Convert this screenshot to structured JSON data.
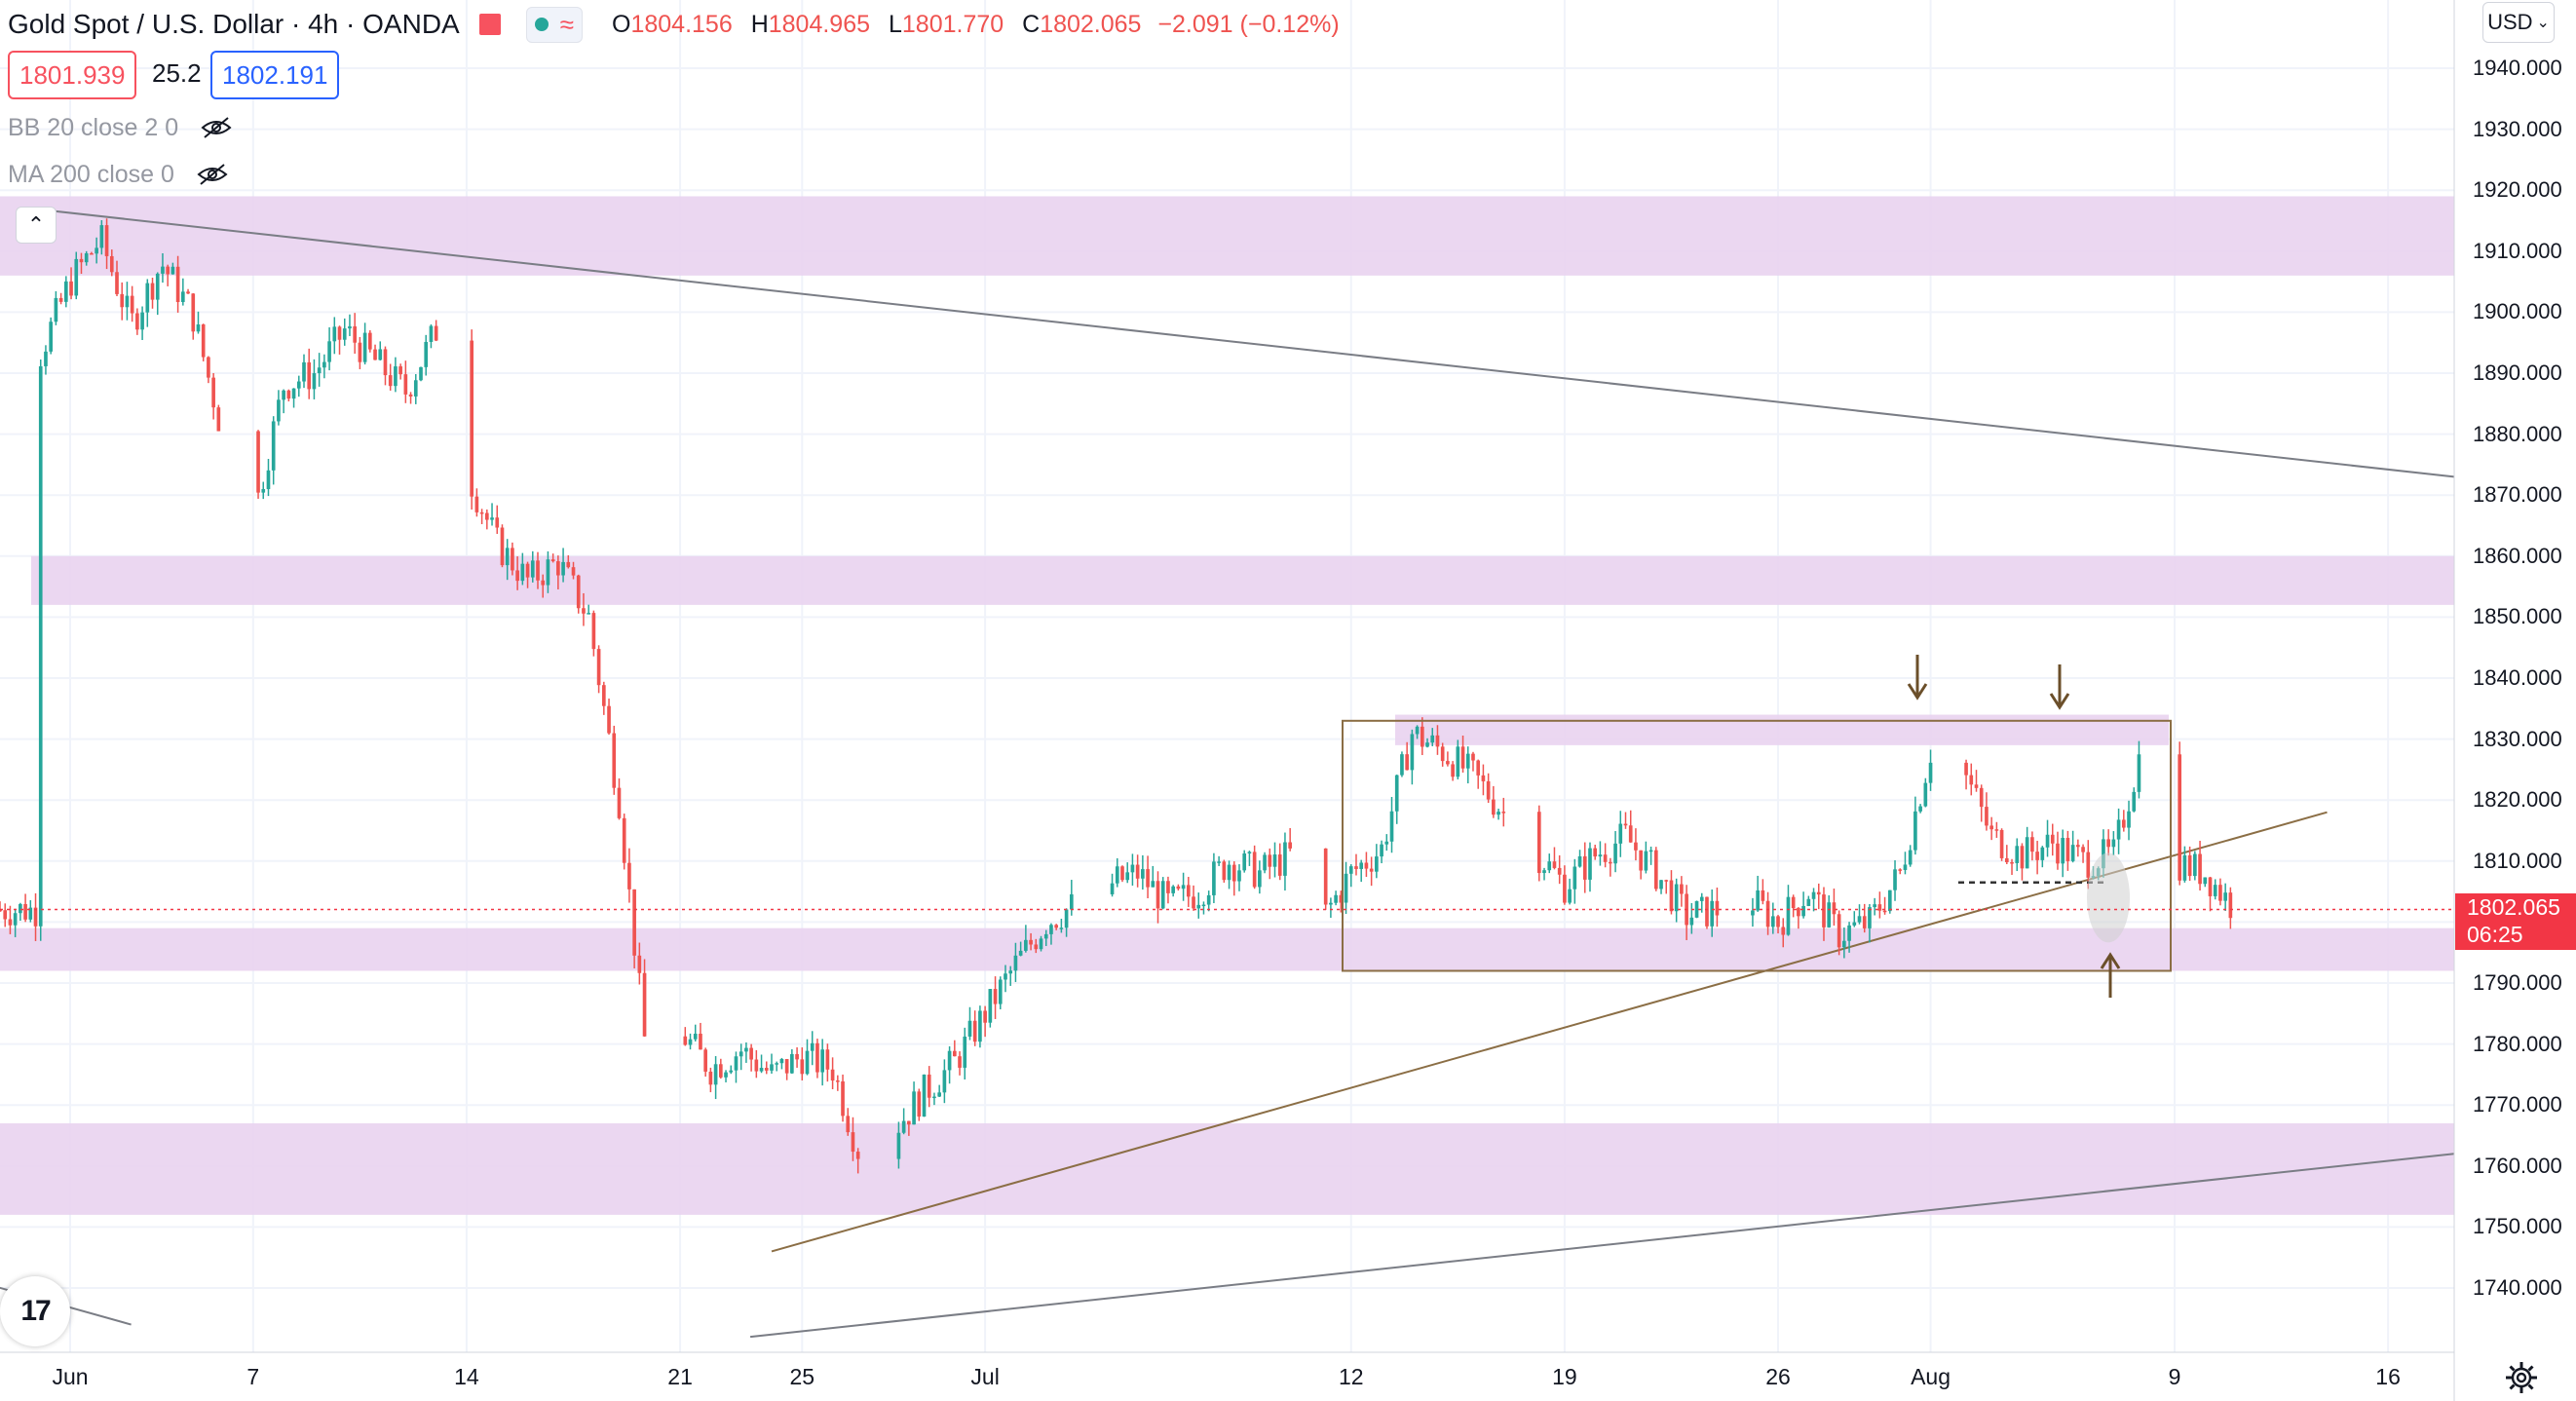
{
  "header": {
    "symbol_title": "Gold Spot / U.S. Dollar · 4h · OANDA",
    "status_icon": "market-open-dot",
    "ohlc": {
      "open_label": "O",
      "open": "1804.156",
      "high_label": "H",
      "high": "1804.965",
      "low_label": "L",
      "low": "1801.770",
      "close_label": "C",
      "close": "1802.065",
      "change": "−2.091 (−0.12%)"
    }
  },
  "quote": {
    "bid": "1801.939",
    "spread": "25.2",
    "ask": "1802.191"
  },
  "indicators": [
    {
      "label": "BB 20 close 2 0",
      "icon": "eye-hidden-icon"
    },
    {
      "label": "MA 200 close 0",
      "icon": "eye-hidden-icon"
    }
  ],
  "currency": "USD",
  "last_price": {
    "price": "1802.065",
    "countdown": "06:25"
  },
  "colors": {
    "up": "#26a69a",
    "down": "#ef5350",
    "zone": "#e9d3ef",
    "trendline": "#7a7d85",
    "box": "#8b6e45",
    "arrow": "#6b4f2a",
    "price_line": "#f23645"
  },
  "chart_data": {
    "type": "candlestick",
    "symbol": "XAUUSD",
    "timeframe": "4h",
    "ylim": [
      1732,
      1955
    ],
    "y_ticks": [
      1940,
      1930,
      1920,
      1910,
      1900,
      1890,
      1880,
      1870,
      1860,
      1850,
      1840,
      1830,
      1820,
      1810,
      1800,
      1790,
      1780,
      1770,
      1760,
      1750,
      1740
    ],
    "y_tick_labels": [
      "1940.000",
      "1930.000",
      "1920.000",
      "1910.000",
      "1900.000",
      "1890.000",
      "1880.000",
      "1870.000",
      "1860.000",
      "1850.000",
      "1840.000",
      "1830.000",
      "1820.000",
      "1810.000",
      "1800.000",
      "1790.000",
      "1780.000",
      "1770.000",
      "1760.000",
      "1750.000",
      "1740.000"
    ],
    "x_ticks": [
      "Jun",
      "7",
      "14",
      "21",
      "25",
      "Jul",
      "12",
      "19",
      "26",
      "Aug",
      "9",
      "16"
    ],
    "x_tick_days": [
      1,
      7,
      14,
      21,
      25,
      31,
      43,
      50,
      57,
      62,
      70,
      77
    ],
    "day_numbering": "days from May 31 (Jun 1 = 1)",
    "close_path": [
      [
        0,
        1893
      ],
      [
        1,
        1905
      ],
      [
        2,
        1912
      ],
      [
        3,
        1898
      ],
      [
        4,
        1908
      ],
      [
        5,
        1900
      ],
      [
        6,
        1880
      ],
      [
        7,
        1866
      ],
      [
        8,
        1888
      ],
      [
        9,
        1890
      ],
      [
        10,
        1897
      ],
      [
        11,
        1892
      ],
      [
        12,
        1887
      ],
      [
        13,
        1897
      ],
      [
        14,
        1874
      ],
      [
        15,
        1862
      ],
      [
        16,
        1856
      ],
      [
        17,
        1859
      ],
      [
        18,
        1850
      ],
      [
        19,
        1820
      ],
      [
        20,
        1773
      ],
      [
        21,
        1782
      ],
      [
        22,
        1776
      ],
      [
        23,
        1779
      ],
      [
        24,
        1775
      ],
      [
        25,
        1778
      ],
      [
        26,
        1776
      ],
      [
        27,
        1760
      ],
      [
        28,
        1766
      ],
      [
        29,
        1772
      ],
      [
        30,
        1777
      ],
      [
        31,
        1785
      ],
      [
        32,
        1793
      ],
      [
        33,
        1800
      ],
      [
        34,
        1803
      ],
      [
        35,
        1806
      ],
      [
        36,
        1808
      ],
      [
        37,
        1803
      ],
      [
        38,
        1805
      ],
      [
        39,
        1810
      ],
      [
        40,
        1808
      ],
      [
        41,
        1811
      ],
      [
        42,
        1800
      ],
      [
        43,
        1808
      ],
      [
        44,
        1812
      ],
      [
        45,
        1831
      ],
      [
        46,
        1828
      ],
      [
        47,
        1824
      ],
      [
        48,
        1818
      ],
      [
        49,
        1812
      ],
      [
        50,
        1806
      ],
      [
        51,
        1811
      ],
      [
        52,
        1814
      ],
      [
        53,
        1808
      ],
      [
        54,
        1801
      ],
      [
        55,
        1802
      ],
      [
        56,
        1804
      ],
      [
        57,
        1800
      ],
      [
        58,
        1805
      ],
      [
        59,
        1798
      ],
      [
        60,
        1800
      ],
      [
        61,
        1808
      ],
      [
        62,
        1828
      ],
      [
        63,
        1826
      ],
      [
        64,
        1814
      ],
      [
        65,
        1811
      ],
      [
        66,
        1813
      ],
      [
        67,
        1810
      ],
      [
        68,
        1811
      ],
      [
        69,
        1830
      ],
      [
        70,
        1810
      ],
      [
        71,
        1808
      ],
      [
        72,
        1802
      ]
    ],
    "zones": [
      {
        "from": 1906,
        "to": 1919
      },
      {
        "from": 1852,
        "to": 1860
      },
      {
        "from": 1829,
        "to": 1834
      },
      {
        "from": 1792,
        "to": 1799
      },
      {
        "from": 1752,
        "to": 1767
      }
    ],
    "range_box": {
      "top": 1833,
      "bottom": 1792,
      "from_day": 43,
      "to_day": 73
    },
    "last_price": 1802.065
  }
}
